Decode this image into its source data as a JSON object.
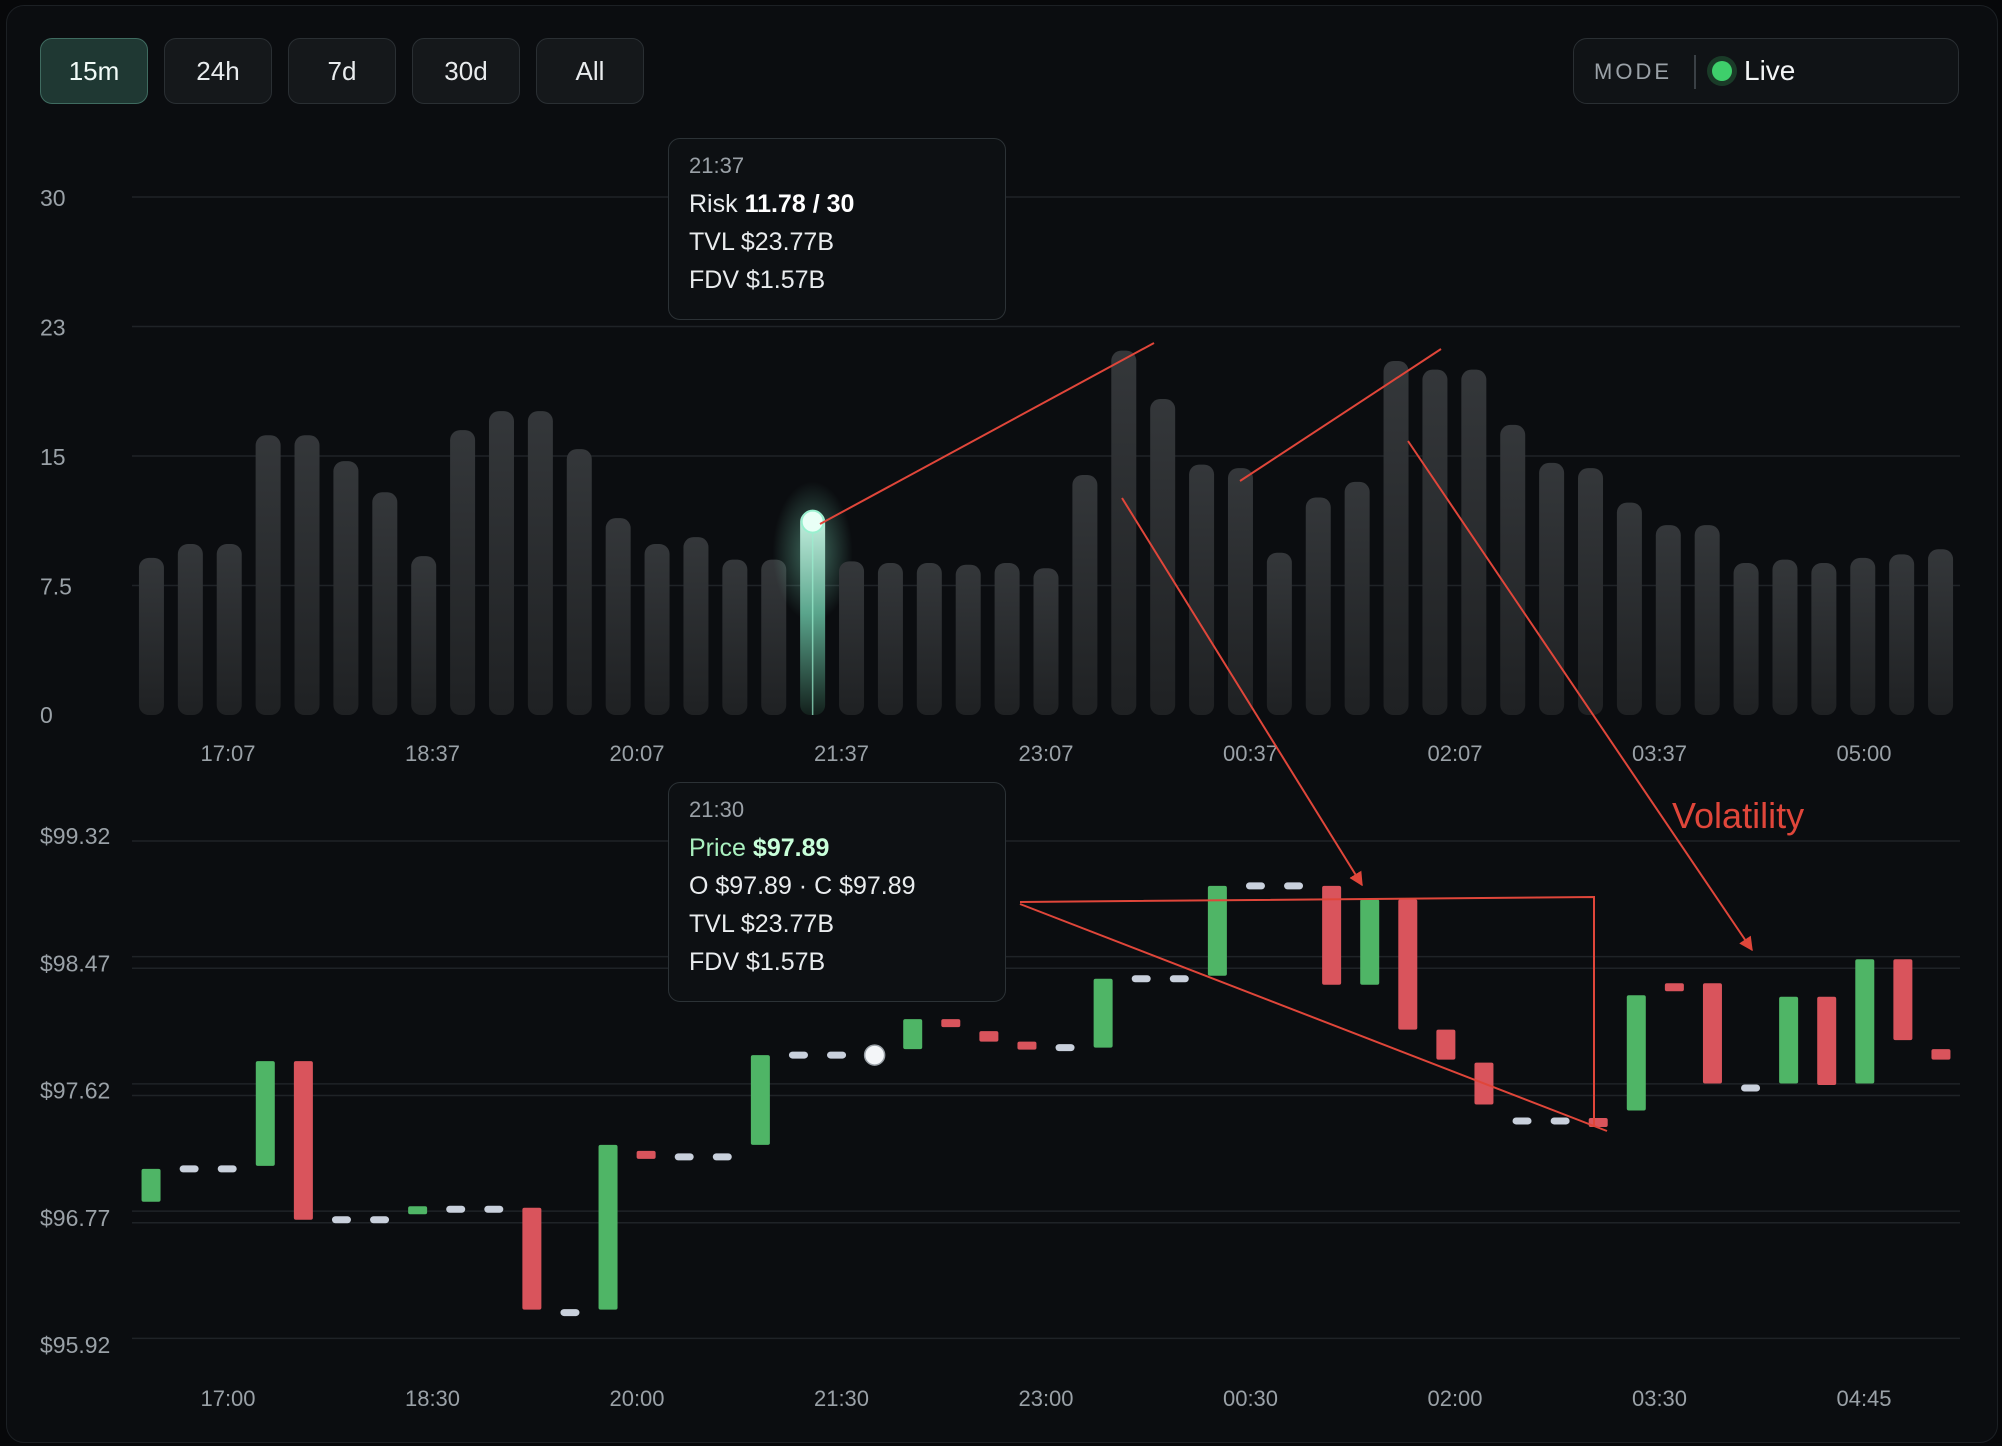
{
  "toolbar": {
    "ranges": [
      {
        "label": "15m",
        "active": true
      },
      {
        "label": "24h",
        "active": false
      },
      {
        "label": "7d",
        "active": false
      },
      {
        "label": "30d",
        "active": false
      },
      {
        "label": "All",
        "active": false
      }
    ],
    "mode_label": "MODE",
    "mode_value": "Live",
    "live_color": "#3ecf6b"
  },
  "colors": {
    "up": "#4fb566",
    "down": "#d9545c",
    "flat": "#c9d0dc",
    "bar": "#2a2c2f",
    "highlight": "#8fe3c6",
    "annotation": "#e0463a"
  },
  "tooltips": {
    "risk": {
      "time": "21:37",
      "risk_prefix": "Risk",
      "risk_value": "11.78 / 30",
      "tvl": "TVL $23.77B",
      "fdv": "FDV $1.57B"
    },
    "price": {
      "time": "21:30",
      "price_prefix": "Price",
      "price_value": "$97.89",
      "oc": "O $97.89 · C $97.89",
      "tvl": "TVL $23.77B",
      "fdv": "FDV $1.57B"
    }
  },
  "annotation": {
    "text": "Volatility"
  },
  "chart_data": [
    {
      "type": "bar",
      "ylim": [
        0,
        30
      ],
      "y_ticks": [
        "30",
        "23",
        "15",
        "7.5",
        "0"
      ],
      "x_ticks": [
        "17:07",
        "18:37",
        "20:07",
        "21:37",
        "23:07",
        "00:37",
        "02:07",
        "03:37",
        "05:00"
      ],
      "values": [
        9.1,
        9.9,
        9.9,
        16.2,
        16.2,
        14.7,
        12.9,
        9.2,
        16.5,
        17.6,
        17.6,
        15.4,
        11.4,
        9.9,
        10.3,
        9.0,
        9.0,
        11.78,
        8.9,
        8.8,
        8.8,
        8.7,
        8.8,
        8.5,
        13.9,
        21.1,
        18.3,
        14.5,
        14.3,
        9.4,
        12.6,
        13.5,
        20.5,
        20.0,
        20.0,
        16.8,
        14.6,
        14.3,
        12.3,
        11.0,
        11.0,
        8.8,
        9.0,
        8.8,
        9.1,
        9.3,
        9.6
      ],
      "highlight_index": 17
    },
    {
      "type": "candlestick",
      "ylim": [
        95.92,
        99.32
      ],
      "y_ticks": [
        "$99.32",
        "$98.47",
        "$97.62",
        "$96.77",
        "$95.92"
      ],
      "x_ticks": [
        "17:00",
        "18:30",
        "20:00",
        "21:30",
        "23:00",
        "00:30",
        "02:00",
        "03:30",
        "04:45"
      ],
      "candles": [
        {
          "o": 96.91,
          "c": 97.13
        },
        {
          "o": 97.13,
          "c": 97.13
        },
        {
          "o": 97.13,
          "c": 97.13
        },
        {
          "o": 97.15,
          "c": 97.85
        },
        {
          "o": 97.85,
          "c": 96.79
        },
        {
          "o": 96.79,
          "c": 96.79
        },
        {
          "o": 96.79,
          "c": 96.79
        },
        {
          "o": 96.86,
          "c": 96.88
        },
        {
          "o": 96.86,
          "c": 96.86
        },
        {
          "o": 96.86,
          "c": 96.86
        },
        {
          "o": 96.87,
          "c": 96.19
        },
        {
          "o": 96.17,
          "c": 96.17
        },
        {
          "o": 96.19,
          "c": 97.29
        },
        {
          "o": 97.25,
          "c": 97.21
        },
        {
          "o": 97.21,
          "c": 97.21
        },
        {
          "o": 97.21,
          "c": 97.21
        },
        {
          "o": 97.29,
          "c": 97.89
        },
        {
          "o": 97.89,
          "c": 97.89
        },
        {
          "o": 97.89,
          "c": 97.89
        },
        {
          "o": 97.89,
          "c": 97.89
        },
        {
          "o": 97.93,
          "c": 98.13
        },
        {
          "o": 98.13,
          "c": 98.09
        },
        {
          "o": 98.05,
          "c": 97.98
        },
        {
          "o": 97.98,
          "c": 97.94
        },
        {
          "o": 97.94,
          "c": 97.94
        },
        {
          "o": 97.94,
          "c": 98.4
        },
        {
          "o": 98.4,
          "c": 98.4
        },
        {
          "o": 98.4,
          "c": 98.4
        },
        {
          "o": 98.42,
          "c": 99.02
        },
        {
          "o": 99.02,
          "c": 99.02
        },
        {
          "o": 99.02,
          "c": 99.02
        },
        {
          "o": 99.02,
          "c": 98.36
        },
        {
          "o": 98.36,
          "c": 98.93
        },
        {
          "o": 98.93,
          "c": 98.06
        },
        {
          "o": 98.06,
          "c": 97.86
        },
        {
          "o": 97.84,
          "c": 97.56
        },
        {
          "o": 97.45,
          "c": 97.45
        },
        {
          "o": 97.45,
          "c": 97.45
        },
        {
          "o": 97.47,
          "c": 97.41
        },
        {
          "o": 97.52,
          "c": 98.29
        },
        {
          "o": 98.37,
          "c": 98.33
        },
        {
          "o": 98.37,
          "c": 97.7
        },
        {
          "o": 97.67,
          "c": 97.67
        },
        {
          "o": 97.7,
          "c": 98.28
        },
        {
          "o": 98.28,
          "c": 97.69
        },
        {
          "o": 97.7,
          "c": 98.53
        },
        {
          "o": 98.53,
          "c": 97.99
        },
        {
          "o": 97.93,
          "c": 97.86
        }
      ]
    }
  ]
}
